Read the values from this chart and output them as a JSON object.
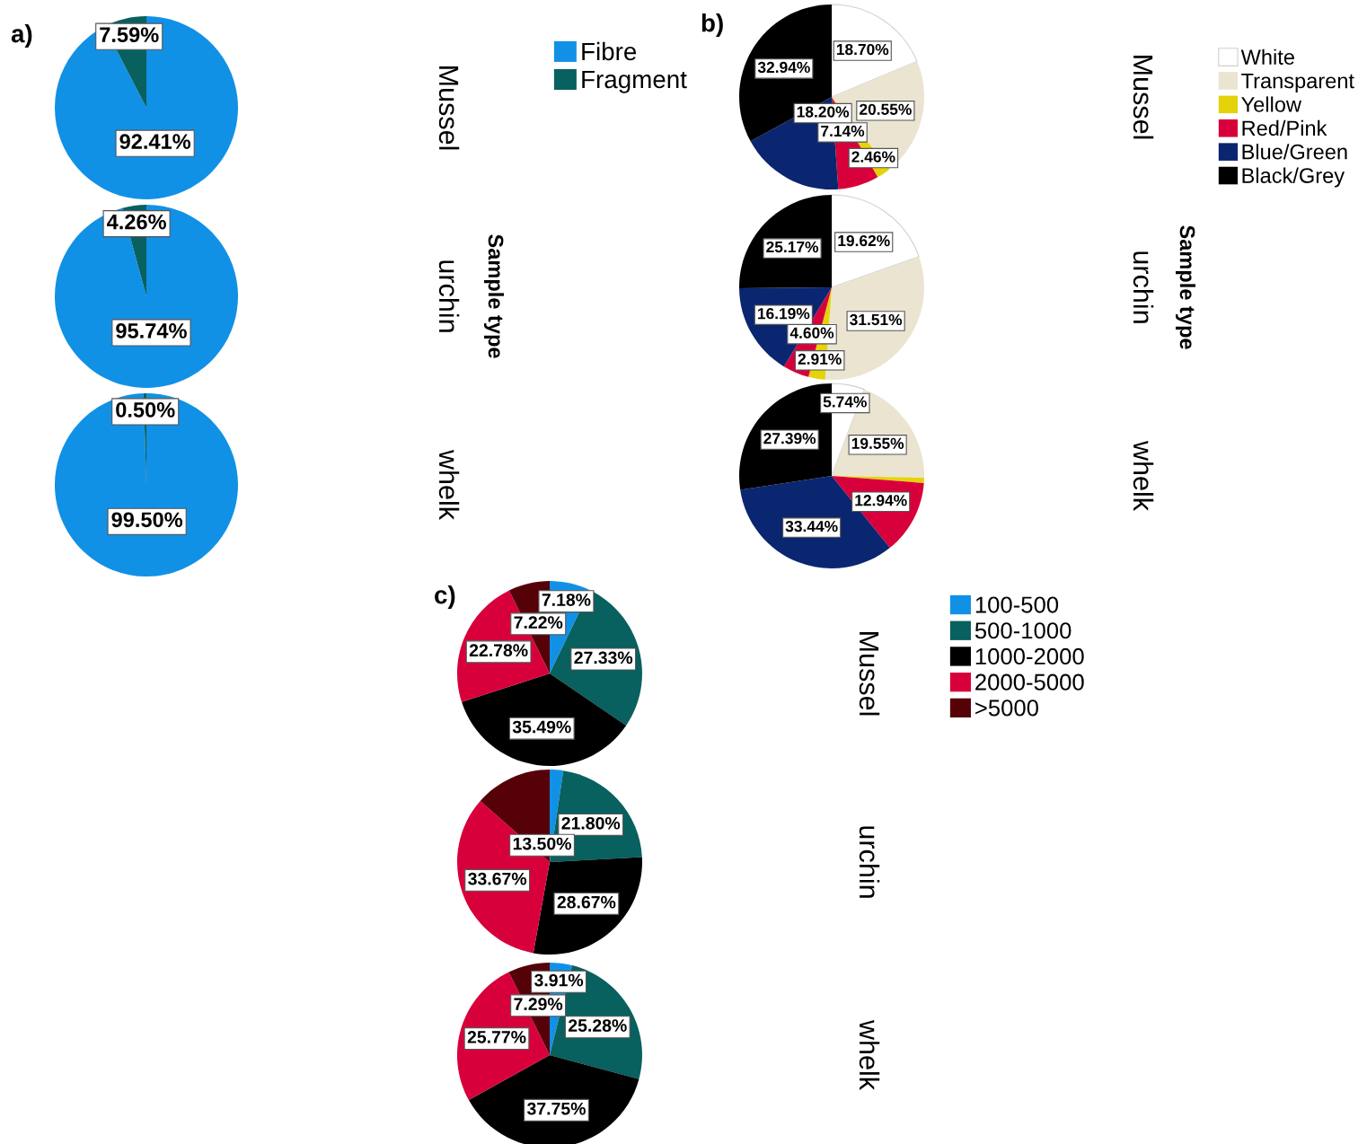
{
  "chart_data": [
    {
      "type": "pie",
      "categories": [
        "Fibre",
        "Fragment"
      ],
      "colors": [
        "#1191e6",
        "#08605f"
      ],
      "legend": "right",
      "annotations": [
        "a)",
        "Sample type"
      ],
      "series": [
        {
          "name": "Mussel",
          "values": [
            92.41,
            7.59
          ],
          "value_labels": [
            "92.41%",
            "7.59%"
          ]
        },
        {
          "name": "urchin",
          "values": [
            95.74,
            4.26
          ],
          "value_labels": [
            "95.74%",
            "4.26%"
          ]
        },
        {
          "name": "whelk",
          "values": [
            99.5,
            0.5
          ],
          "value_labels": [
            "99.50%",
            "0.50%"
          ]
        }
      ]
    },
    {
      "type": "pie",
      "categories": [
        "White",
        "Transparent",
        "Yellow",
        "Red/Pink",
        "Blue/Green",
        "Black/Grey"
      ],
      "colors": [
        "#ffffff",
        "#ebe4d1",
        "#e4d30b",
        "#d8003a",
        "#0b2670",
        "#000000"
      ],
      "legend": "right",
      "annotations": [
        "b)",
        "Sample type"
      ],
      "series": [
        {
          "name": "Mussel",
          "values": [
            18.7,
            20.55,
            2.46,
            7.14,
            18.2,
            32.94
          ],
          "value_labels": [
            "18.70%",
            "20.55%",
            "2.46%",
            "7.14%",
            "18.20%",
            "32.94%"
          ]
        },
        {
          "name": "urchin",
          "values": [
            19.62,
            31.51,
            2.91,
            4.6,
            16.19,
            25.17
          ],
          "value_labels": [
            "19.62%",
            "31.51%",
            "2.91%",
            "4.60%",
            "16.19%",
            "25.17%"
          ]
        },
        {
          "name": "whelk",
          "values": [
            5.74,
            19.55,
            0.94,
            12.94,
            33.44,
            27.39
          ],
          "value_labels": [
            "5.74%",
            "19.55%",
            null,
            "12.94%",
            "33.44%",
            "27.39%"
          ]
        }
      ]
    },
    {
      "type": "pie",
      "categories": [
        "100-500",
        "500-1000",
        "1000-2000",
        "2000-5000",
        ">5000"
      ],
      "colors": [
        "#1191e6",
        "#08605f",
        "#000000",
        "#d8003a",
        "#560008"
      ],
      "legend": "right",
      "annotations": [
        "c)"
      ],
      "series": [
        {
          "name": "Mussel",
          "values": [
            7.18,
            27.33,
            35.49,
            22.78,
            7.22
          ],
          "value_labels": [
            "7.18%",
            "27.33%",
            "35.49%",
            "22.78%",
            "7.22%"
          ]
        },
        {
          "name": "urchin",
          "values": [
            2.36,
            21.8,
            28.67,
            33.67,
            13.5
          ],
          "value_labels": [
            null,
            "21.80%",
            "28.67%",
            "33.67%",
            "13.50%"
          ]
        },
        {
          "name": "whelk",
          "values": [
            3.91,
            25.28,
            37.75,
            25.77,
            7.29
          ],
          "value_labels": [
            "3.91%",
            "25.28%",
            "37.75%",
            "25.77%",
            "7.29%"
          ]
        }
      ]
    }
  ]
}
